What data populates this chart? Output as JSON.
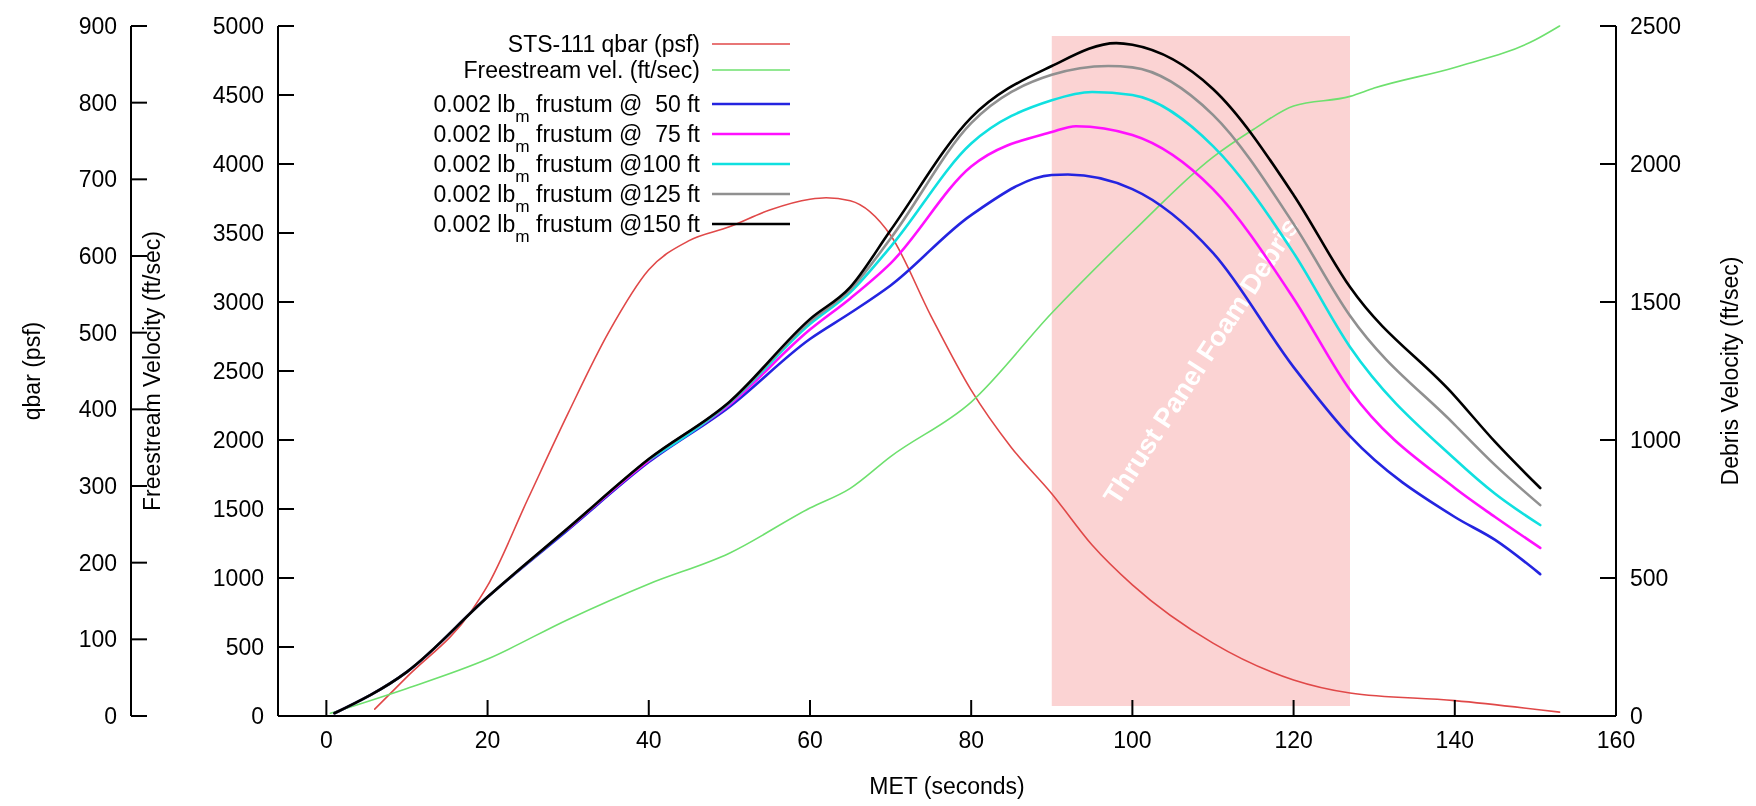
{
  "chart_data": {
    "type": "line",
    "xlabel": "MET (seconds)",
    "ylabel": "Freestream Velocity (ft/sec)",
    "y2label": "Debris Velocity (ft/sec)",
    "y3label": "qbar (psf)",
    "xlim": [
      -6,
      160
    ],
    "xticks": [
      0,
      20,
      40,
      60,
      80,
      100,
      120,
      140,
      160
    ],
    "ylim": [
      0,
      5000
    ],
    "yticks": [
      0,
      500,
      1000,
      1500,
      2000,
      2500,
      3000,
      3500,
      4000,
      4500,
      5000
    ],
    "y2lim": [
      0,
      2500
    ],
    "y2ticks": [
      0,
      500,
      1000,
      1500,
      2000,
      2500
    ],
    "y3lim": [
      0,
      900
    ],
    "y3ticks": [
      0,
      100,
      200,
      300,
      400,
      500,
      600,
      700,
      800,
      900
    ],
    "legend": "top left",
    "grid": false,
    "line_style": "solid",
    "marker": "none",
    "bands": [
      {
        "axis": "x",
        "from": 90,
        "to": 127,
        "label": "Thrust Panel Foam Debris",
        "color": "#fbd3d3"
      }
    ],
    "series": [
      {
        "name": "STS-111 qbar (psf)",
        "color": "#e04848",
        "axis": "y3",
        "x": [
          6,
          10,
          18,
          20,
          25,
          30,
          35,
          40,
          45,
          50,
          55,
          60,
          62,
          65,
          70,
          75,
          80,
          85,
          90,
          95,
          100,
          110,
          120,
          127,
          140,
          153
        ],
        "values": [
          9,
          51,
          137,
          170,
          283,
          395,
          500,
          582,
          620,
          638,
          660,
          674,
          676,
          672,
          627,
          522,
          425,
          350,
          290,
          223,
          171,
          95,
          47,
          30,
          20,
          5
        ]
      },
      {
        "name": "Freestream vel. (ft/sec)",
        "color": "#6ee06e",
        "x": [
          0.5,
          10,
          20,
          30,
          40,
          50,
          60,
          65,
          70,
          80,
          90,
          100,
          110,
          115,
          120,
          127,
          130,
          140,
          150,
          153
        ],
        "values": [
          20,
          200,
          413,
          700,
          957,
          1180,
          1507,
          1650,
          1880,
          2275,
          2920,
          3507,
          4050,
          4250,
          4420,
          4490,
          4550,
          4700,
          4900,
          5000
        ]
      },
      {
        "name": "0.002 lb$_{m}$ frustum @  50 ft",
        "color": "#2424e0",
        "axis": "y2",
        "x": [
          1,
          10,
          20,
          30,
          40,
          50,
          60,
          65,
          70,
          80,
          90,
          92,
          100,
          110,
          120,
          127,
          140,
          145,
          150.6
        ],
        "values": [
          10,
          160,
          431,
          675,
          920,
          1120,
          1366,
          1460,
          1560,
          1815,
          1960,
          1962,
          1909,
          1678,
          1264,
          1014,
          721,
          638,
          514
        ]
      },
      {
        "name": "0.002 lb$_{m}$ frustum @  75 ft",
        "color": "#ff10ff",
        "axis": "y2",
        "x": [
          30,
          40,
          50,
          60,
          65,
          70,
          80,
          90,
          93,
          100,
          110,
          120,
          127,
          140,
          145,
          150.6
        ],
        "values": [
          678,
          925,
          1128,
          1400,
          1513,
          1640,
          1991,
          2116,
          2137,
          2105,
          1909,
          1513,
          1181,
          826,
          721,
          609
        ]
      },
      {
        "name": "0.002 lb$_{m}$ frustum @100 ft",
        "color": "#10e0e0",
        "axis": "y2",
        "x": [
          40,
          50,
          60,
          65,
          70,
          80,
          90,
          95,
          100,
          110,
          120,
          127,
          140,
          145,
          150.6
        ],
        "values": [
          928,
          1133,
          1420,
          1535,
          1700,
          2074,
          2231,
          2261,
          2250,
          2065,
          1678,
          1337,
          931,
          805,
          692
        ]
      },
      {
        "name": "0.002 lb$_{m}$ frustum @125 ft",
        "color": "#909090",
        "axis": "y2",
        "x": [
          1,
          10,
          20,
          30,
          40,
          50,
          60,
          65,
          70,
          80,
          90,
          97,
          100,
          110,
          120,
          127,
          140,
          145,
          150.6
        ],
        "values": [
          10,
          160,
          431,
          681,
          930,
          1136,
          1430,
          1545,
          1730,
          2148,
          2323,
          2355,
          2350,
          2178,
          1783,
          1450,
          1055,
          909,
          764
        ]
      },
      {
        "name": "0.002 lb$_{m}$ frustum @150 ft",
        "color": "#000000",
        "axis": "y2",
        "x": [
          1,
          10,
          20,
          30,
          40,
          50,
          60,
          65,
          70,
          80,
          90,
          98,
          100,
          110,
          120,
          127,
          140,
          145,
          150.6
        ],
        "values": [
          10,
          160,
          431,
          681,
          931,
          1138,
          1438,
          1554,
          1760,
          2168,
          2355,
          2438,
          2432,
          2272,
          1888,
          1554,
          1159,
          993,
          826
        ]
      }
    ]
  }
}
